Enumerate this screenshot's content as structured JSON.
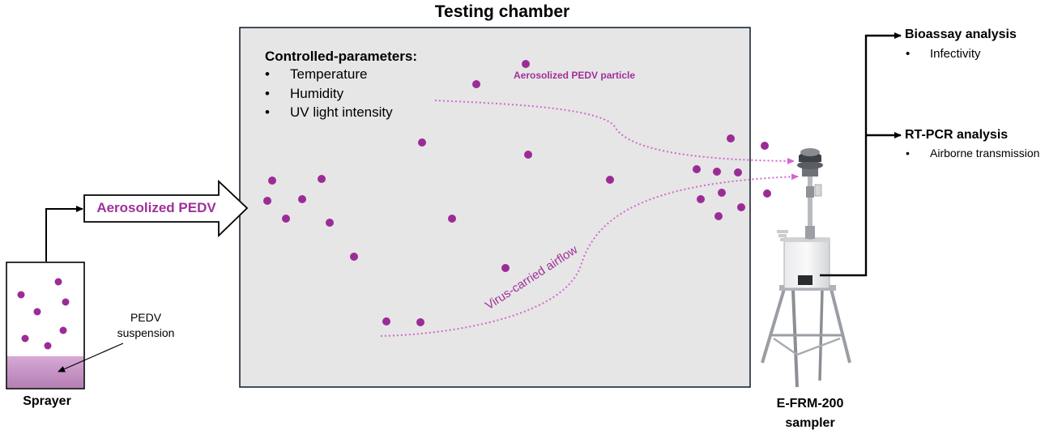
{
  "chamber": {
    "title": "Testing chamber",
    "params_title": "Controlled-parameters:",
    "params": [
      "Temperature",
      "Humidity",
      "UV light intensity"
    ],
    "particle_label": "Aerosolized PEDV particle",
    "airflow_label": "Virus-carried airflow"
  },
  "arrow_label": "Aerosolized PEDV",
  "sprayer": {
    "label": "Sprayer",
    "suspension_label": [
      "PEDV",
      "suspension"
    ]
  },
  "sampler": {
    "label": [
      "E-FRM-200",
      "sampler"
    ]
  },
  "analyses": [
    {
      "title": "Bioassay analysis",
      "item": "Infectivity"
    },
    {
      "title": "RT-PCR analysis",
      "item": "Airborne transmission"
    }
  ],
  "colors": {
    "particle": "#9b2c96",
    "label_purple": "#a0309a",
    "airflow": "#d466d0",
    "chamber_fill": "#e6e6e6",
    "chamber_border": "#1a2533",
    "suspension": "#c99ac8"
  },
  "bullet_symbol": "•"
}
